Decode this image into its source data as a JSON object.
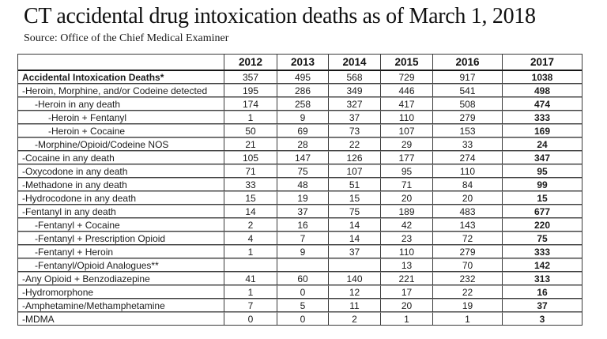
{
  "page": {
    "title": "CT accidental drug intoxication deaths as of March 1, 2018",
    "source": "Source: Office of the Chief Medical Examiner"
  },
  "colors": {
    "table_border": "#3a3a3a",
    "table_rule_light": "#ababab",
    "header_rule": "#161616",
    "text": "#1c1c1c"
  },
  "chart_data": {
    "type": "table",
    "title": "CT accidental drug intoxication deaths as of March 1, 2018",
    "source": "Source: Office of the Chief Medical Examiner",
    "columns": [
      "",
      "2012",
      "2013",
      "2014",
      "2015",
      "2016",
      "2017"
    ],
    "bold_column": "2017",
    "rows": [
      {
        "label": "Accidental Intoxication Deaths*",
        "indent": 0,
        "bold": true,
        "values": [
          "357",
          "495",
          "568",
          "729",
          "917",
          "1038"
        ]
      },
      {
        "label": "-Heroin, Morphine, and/or Codeine detected",
        "indent": 0,
        "bold": false,
        "values": [
          "195",
          "286",
          "349",
          "446",
          "541",
          "498"
        ]
      },
      {
        "label": "-Heroin in any death",
        "indent": 1,
        "bold": false,
        "values": [
          "174",
          "258",
          "327",
          "417",
          "508",
          "474"
        ]
      },
      {
        "label": "-Heroin + Fentanyl",
        "indent": 2,
        "bold": false,
        "values": [
          "1",
          "9",
          "37",
          "110",
          "279",
          "333"
        ]
      },
      {
        "label": "-Heroin + Cocaine",
        "indent": 2,
        "bold": false,
        "values": [
          "50",
          "69",
          "73",
          "107",
          "153",
          "169"
        ]
      },
      {
        "label": "-Morphine/Opioid/Codeine NOS",
        "indent": 1,
        "bold": false,
        "values": [
          "21",
          "28",
          "22",
          "29",
          "33",
          "24"
        ]
      },
      {
        "label": "-Cocaine in any death",
        "indent": 0,
        "bold": false,
        "values": [
          "105",
          "147",
          "126",
          "177",
          "274",
          "347"
        ]
      },
      {
        "label": "-Oxycodone in any death",
        "indent": 0,
        "bold": false,
        "values": [
          "71",
          "75",
          "107",
          "95",
          "110",
          "95"
        ]
      },
      {
        "label": "-Methadone in any death",
        "indent": 0,
        "bold": false,
        "values": [
          "33",
          "48",
          "51",
          "71",
          "84",
          "99"
        ]
      },
      {
        "label": "-Hydrocodone in any death",
        "indent": 0,
        "bold": false,
        "values": [
          "15",
          "19",
          "15",
          "20",
          "20",
          "15"
        ]
      },
      {
        "label": "-Fentanyl in any death",
        "indent": 0,
        "bold": false,
        "values": [
          "14",
          "37",
          "75",
          "189",
          "483",
          "677"
        ]
      },
      {
        "label": "-Fentanyl + Cocaine",
        "indent": 1,
        "bold": false,
        "values": [
          "2",
          "16",
          "14",
          "42",
          "143",
          "220"
        ]
      },
      {
        "label": "-Fentanyl + Prescription Opioid",
        "indent": 1,
        "bold": false,
        "values": [
          "4",
          "7",
          "14",
          "23",
          "72",
          "75"
        ]
      },
      {
        "label": "-Fentanyl + Heroin",
        "indent": 1,
        "bold": false,
        "values": [
          "1",
          "9",
          "37",
          "110",
          "279",
          "333"
        ]
      },
      {
        "label": "-Fentanyl/Opioid Analogues**",
        "indent": 1,
        "bold": false,
        "values": [
          "",
          "",
          "",
          "13",
          "70",
          "142"
        ]
      },
      {
        "label": "-Any Opioid + Benzodiazepine",
        "indent": 0,
        "bold": false,
        "values": [
          "41",
          "60",
          "140",
          "221",
          "232",
          "313"
        ]
      },
      {
        "label": "-Hydromorphone",
        "indent": 0,
        "bold": false,
        "values": [
          "1",
          "0",
          "12",
          "17",
          "22",
          "16"
        ]
      },
      {
        "label": "-Amphetamine/Methamphetamine",
        "indent": 0,
        "bold": false,
        "values": [
          "7",
          "5",
          "11",
          "20",
          "19",
          "37"
        ]
      },
      {
        "label": "-MDMA",
        "indent": 0,
        "bold": false,
        "values": [
          "0",
          "0",
          "2",
          "1",
          "1",
          "3"
        ]
      }
    ]
  }
}
